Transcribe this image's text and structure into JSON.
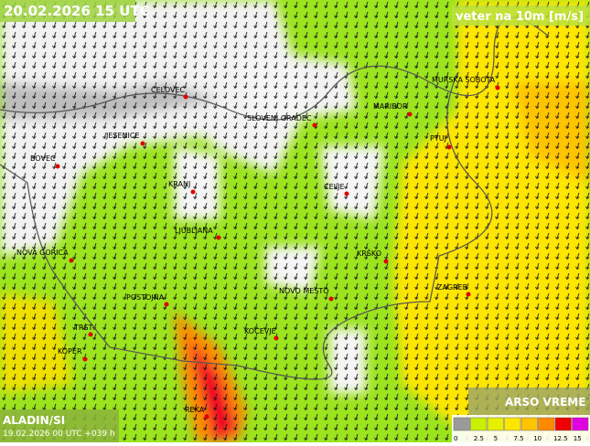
{
  "header": {
    "valid_time": "20.02.2026 15 UTC",
    "parameter": "veter na 10m [m/s]"
  },
  "cities": [
    "CELOVEC",
    "SLOVENJ GRADEC",
    "MURSKA SOBOTA",
    "MARIBOR",
    "JESENICE",
    "PTUJ",
    "BOVEC",
    "KRANJ",
    "CELJE",
    "LJUBLJANA",
    "NOVA GORICA",
    "KRŠKO",
    "ZAGREB",
    "POSTOJNA",
    "NOVO MESTO",
    "TRST",
    "KOČEVJE",
    "KOPER",
    "REKA"
  ],
  "footer": {
    "model": "ALADIN/SI",
    "run": "19.02.2026 00 UTC +039 h",
    "brand": "ARSO VREME"
  },
  "legend": {
    "colors": [
      "#9a9a9a",
      "#c8f000",
      "#e6f000",
      "#ffe600",
      "#ffc400",
      "#ff8a00",
      "#f00000",
      "#e000e0"
    ],
    "ticks": [
      0,
      2.5,
      5,
      7.5,
      10,
      12.5,
      15
    ]
  }
}
